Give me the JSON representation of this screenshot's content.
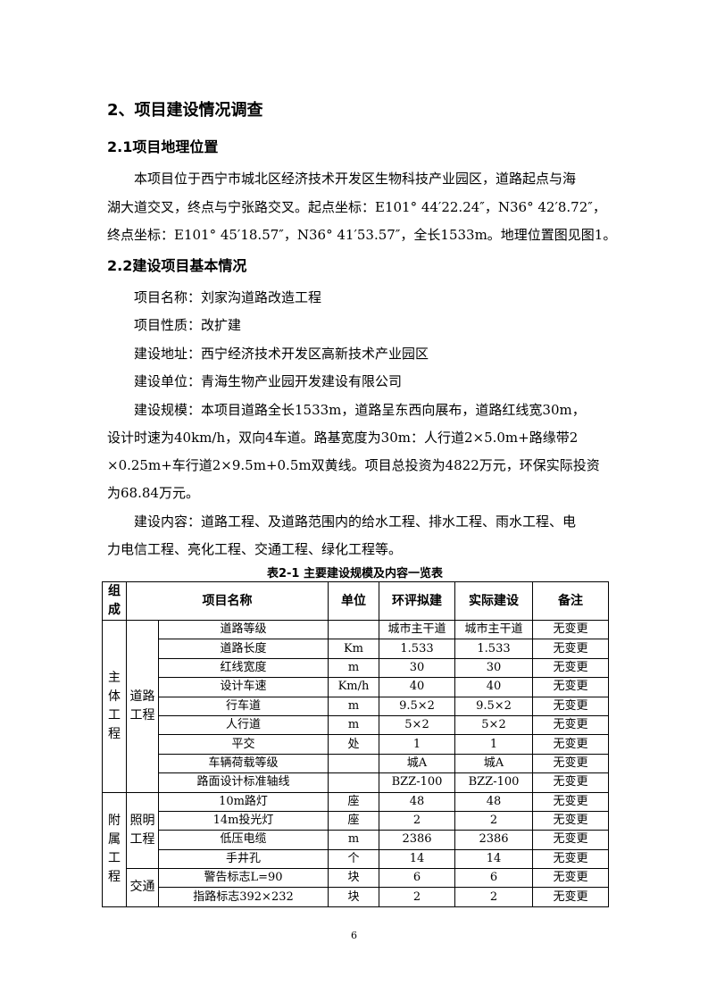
{
  "heading": "2、项目建设情况调查",
  "s21": {
    "title": "2.1项目地理位置",
    "lines": [
      "本项目位于西宁市城北区经济技术开发区生物科技产业园区，道路起点与海",
      "湖大道交叉，终点与宁张路交叉。起点坐标：E101° 44′22.24″，N36° 42′8.72″，",
      "终点坐标：E101° 45′18.57″，N36° 41′53.57″，全长1533m。地理位置图见图1。"
    ]
  },
  "s22": {
    "title": "2.2建设项目基本情况",
    "items": [
      "项目名称：刘家沟道路改造工程",
      "项目性质：改扩建",
      "建设地址：西宁经济技术开发区高新技术产业园区",
      "建设单位：青海生物产业园开发建设有限公司"
    ],
    "scale": [
      "建设规模：本项目道路全长1533m，道路呈东西向展布，道路红线宽30m，",
      "设计时速为40km/h，双向4车道。路基宽度为30m：人行道2×5.0m+路缘带2",
      "×0.25m+车行道2×9.5m+0.5m双黄线。项目总投资为4822万元，环保实际投资",
      "为68.84万元。"
    ],
    "content": [
      "建设内容：道路工程、及道路范围内的给水工程、排水工程、雨水工程、电",
      "力电信工程、亮化工程、交通工程、绿化工程等。"
    ]
  },
  "table": {
    "caption": "表2-1  主要建设规模及内容一览表",
    "headers": [
      "组成",
      "项目名称",
      "单位",
      "环评拟建",
      "实际建设",
      "备注"
    ],
    "groups": [
      "主体工程",
      "附属工程"
    ],
    "subgroups": [
      "道路工程",
      "照明工程",
      "交通"
    ],
    "rows": [
      [
        "道路等级",
        "",
        "城市主干道",
        "城市主干道",
        "无变更"
      ],
      [
        "道路长度",
        "Km",
        "1.533",
        "1.533",
        "无变更"
      ],
      [
        "红线宽度",
        "m",
        "30",
        "30",
        "无变更"
      ],
      [
        "设计车速",
        "Km/h",
        "40",
        "40",
        "无变更"
      ],
      [
        "行车道",
        "m",
        "9.5×2",
        "9.5×2",
        "无变更"
      ],
      [
        "人行道",
        "m",
        "5×2",
        "5×2",
        "无变更"
      ],
      [
        "平交",
        "处",
        "1",
        "1",
        "无变更"
      ],
      [
        "车辆荷载等级",
        "",
        "城A",
        "城A",
        "无变更"
      ],
      [
        "路面设计标准轴线",
        "",
        "BZZ-100",
        "BZZ-100",
        "无变更"
      ],
      [
        "10m路灯",
        "座",
        "48",
        "48",
        "无变更"
      ],
      [
        "14m投光灯",
        "座",
        "2",
        "2",
        "无变更"
      ],
      [
        "低压电缆",
        "m",
        "2386",
        "2386",
        "无变更"
      ],
      [
        "手井孔",
        "个",
        "14",
        "14",
        "无变更"
      ],
      [
        "警告标志L=90",
        "块",
        "6",
        "6",
        "无变更"
      ],
      [
        "指路标志392×232",
        "块",
        "2",
        "2",
        "无变更"
      ]
    ]
  },
  "page_number": "6"
}
